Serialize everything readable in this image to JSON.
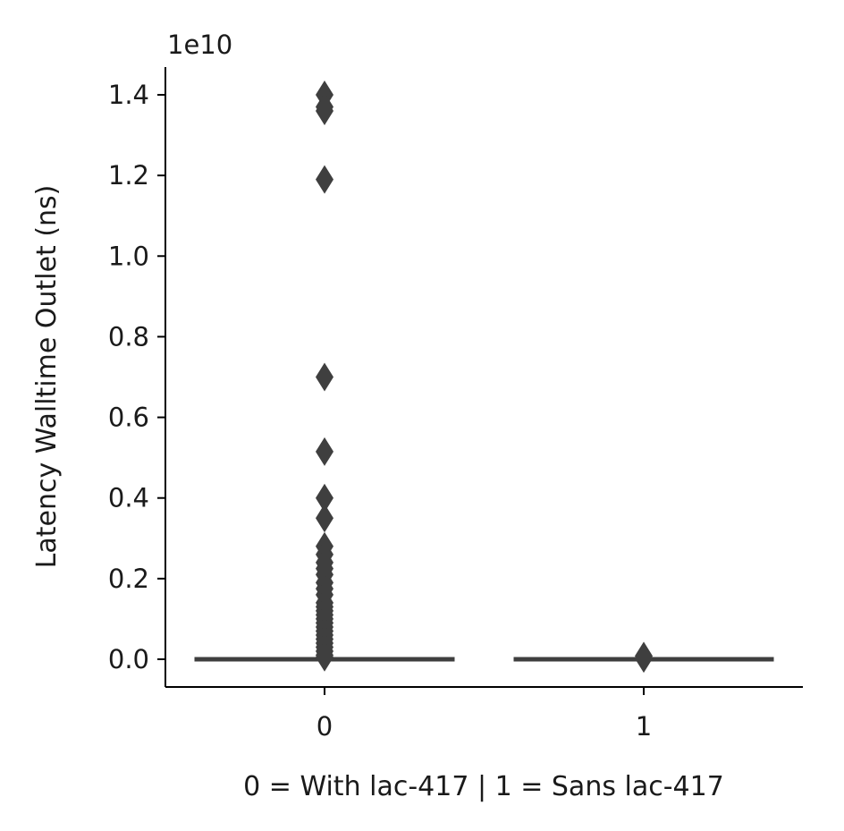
{
  "chart_data": {
    "type": "box",
    "title": "",
    "xlabel": "0 = With lac-417 | 1 = Sans lac-417",
    "ylabel": "Latency Walltime Outlet (ns)",
    "y_offset_label": "1e10",
    "y_scale_factor": 10000000000.0,
    "ylim": [
      -0.07,
      1.47
    ],
    "yticks": [
      0.0,
      0.2,
      0.4,
      0.6,
      0.8,
      1.0,
      1.2,
      1.4
    ],
    "ytick_labels": [
      "0.0",
      "0.2",
      "0.4",
      "0.6",
      "0.8",
      "1.0",
      "1.2",
      "1.4"
    ],
    "categories": [
      "0",
      "1"
    ],
    "grid": false,
    "colors": {
      "box": "#3f3f3f",
      "axis": "#000000"
    },
    "boxes": [
      {
        "category": "0",
        "median": 0.0,
        "q1": 0.0,
        "q3": 0.0,
        "whisker_low": 0.0,
        "whisker_high": 0.0,
        "outliers": [
          1.4,
          1.37,
          1.36,
          1.19,
          0.7,
          0.515,
          0.4,
          0.35,
          0.28,
          0.26,
          0.24,
          0.225,
          0.21,
          0.19,
          0.175,
          0.16,
          0.14,
          0.13,
          0.12,
          0.11,
          0.1,
          0.09,
          0.08,
          0.07,
          0.06,
          0.05,
          0.04,
          0.03,
          0.02,
          0.01,
          0.005
        ]
      },
      {
        "category": "1",
        "median": 0.0,
        "q1": 0.0,
        "q3": 0.0,
        "whisker_low": 0.0,
        "whisker_high": 0.0,
        "outliers": [
          0.008,
          0.004,
          0.002
        ]
      }
    ]
  }
}
